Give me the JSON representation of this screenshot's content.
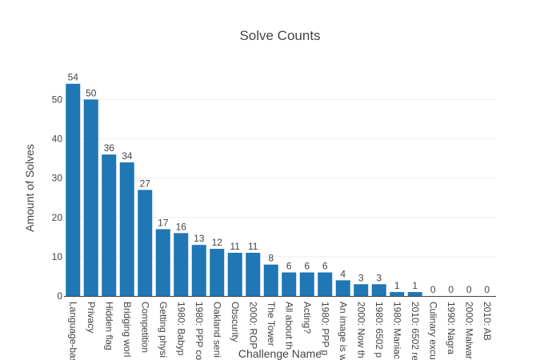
{
  "chart_data": {
    "type": "bar",
    "title": "Solve Counts",
    "xlabel": "Challenge Name",
    "ylabel": "Amount of Solves",
    "ylim": [
      0,
      57
    ],
    "yticks": [
      0,
      10,
      20,
      30,
      40,
      50
    ],
    "grid": true,
    "bar_color": "#1f77b4",
    "categories": [
      "Language-bas",
      "Privacy",
      "Hidden flag",
      "Bridging worl",
      "Competition",
      "Getting physi",
      "1980: Babyp",
      "1980: PPP co",
      "Oakland seni",
      "Obscurity",
      "2000: ROP",
      "The Tower",
      "All about th",
      "Acting?",
      "1980: PPP p",
      "An image is w",
      "2000: Now th",
      "1980: 6502 p",
      "1980: Maniac",
      "2010: 6502 re",
      "Culinary excu",
      "1990: Nagra",
      "2000: Malwar",
      "2010: AB"
    ],
    "values": [
      54,
      50,
      36,
      34,
      27,
      17,
      16,
      13,
      12,
      11,
      11,
      8,
      6,
      6,
      6,
      4,
      3,
      3,
      1,
      1,
      0,
      0,
      0,
      0
    ]
  }
}
